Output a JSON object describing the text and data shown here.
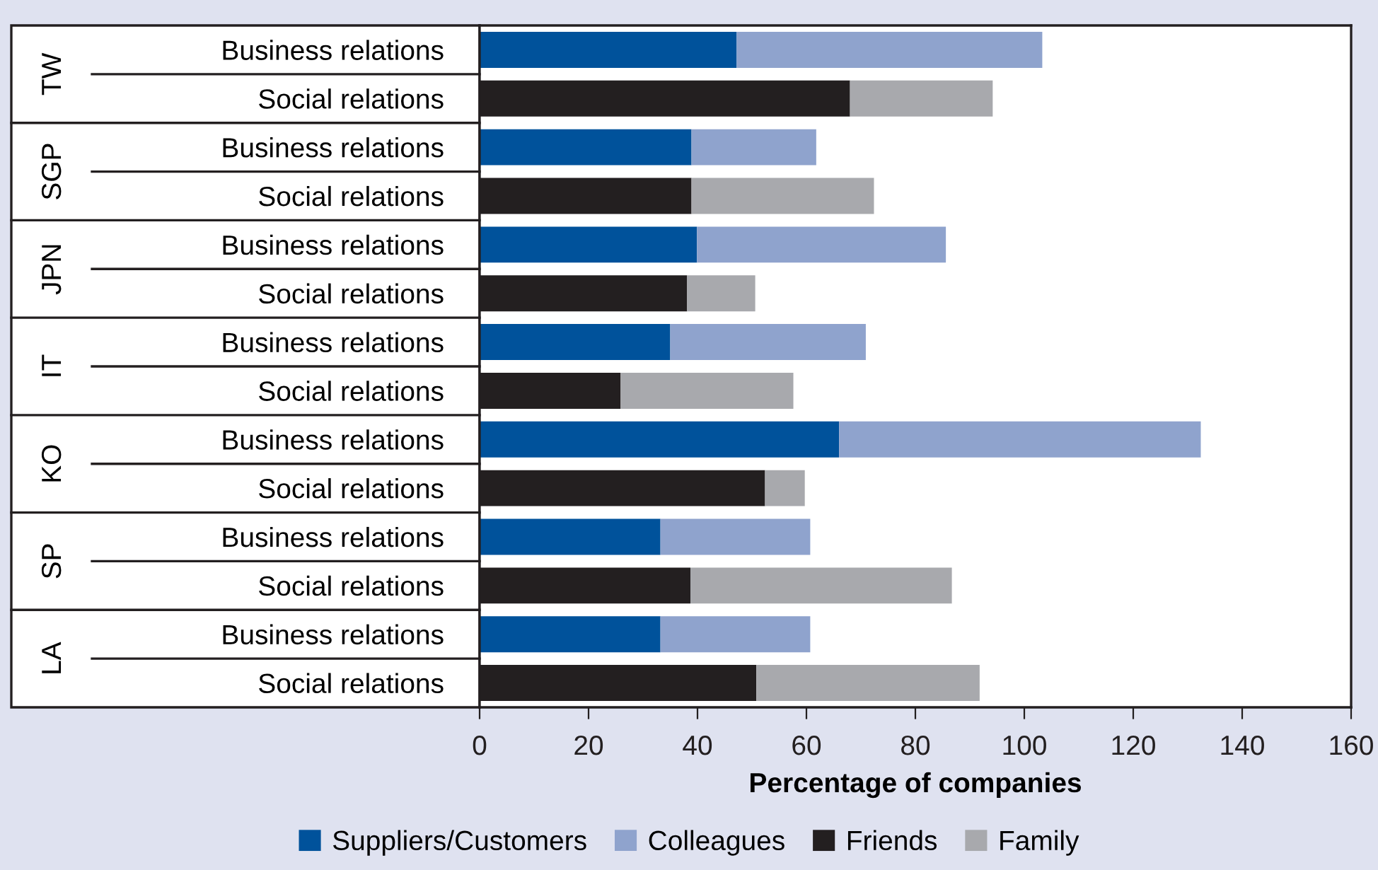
{
  "chart_data": {
    "type": "bar",
    "orientation": "horizontal",
    "stacked": true,
    "categories": [
      "Business relations",
      "Social relations",
      "Business relations",
      "Social relations",
      "Business relations",
      "Social relations",
      "Business relations",
      "Social relations",
      "Business relations",
      "Social relations",
      "Business relations",
      "Social relations",
      "Business relations",
      "Social relations"
    ],
    "annotations": [
      "TW",
      "SGP",
      "JPN",
      "IT",
      "KO",
      "SP",
      "LA"
    ],
    "xlabel": "Percentage of companies",
    "xlim": [
      0,
      160
    ],
    "xticks": [
      0,
      20,
      40,
      60,
      80,
      100,
      120,
      140,
      160
    ],
    "series": [
      {
        "name": "Suppliers/Customers",
        "color": "#00529b",
        "values": [
          47.2,
          null,
          38.9,
          null,
          39.9,
          null,
          35.0,
          null,
          66.0,
          null,
          33.2,
          null,
          33.2,
          null
        ]
      },
      {
        "name": "Colleagues",
        "color": "#8fa3cd",
        "values": [
          56.1,
          null,
          22.9,
          null,
          45.7,
          null,
          35.9,
          null,
          66.4,
          null,
          27.5,
          null,
          27.5,
          null
        ]
      },
      {
        "name": "Friends",
        "color": "#231f20",
        "values": [
          null,
          68.0,
          null,
          38.9,
          null,
          38.1,
          null,
          25.9,
          null,
          52.4,
          null,
          38.7,
          null,
          50.8
        ]
      },
      {
        "name": "Family",
        "color": "#a8a9ad",
        "values": [
          null,
          26.2,
          null,
          33.5,
          null,
          12.5,
          null,
          31.7,
          null,
          7.3,
          null,
          48.0,
          null,
          41.0
        ]
      }
    ],
    "legend": "bottom",
    "grid": false
  }
}
